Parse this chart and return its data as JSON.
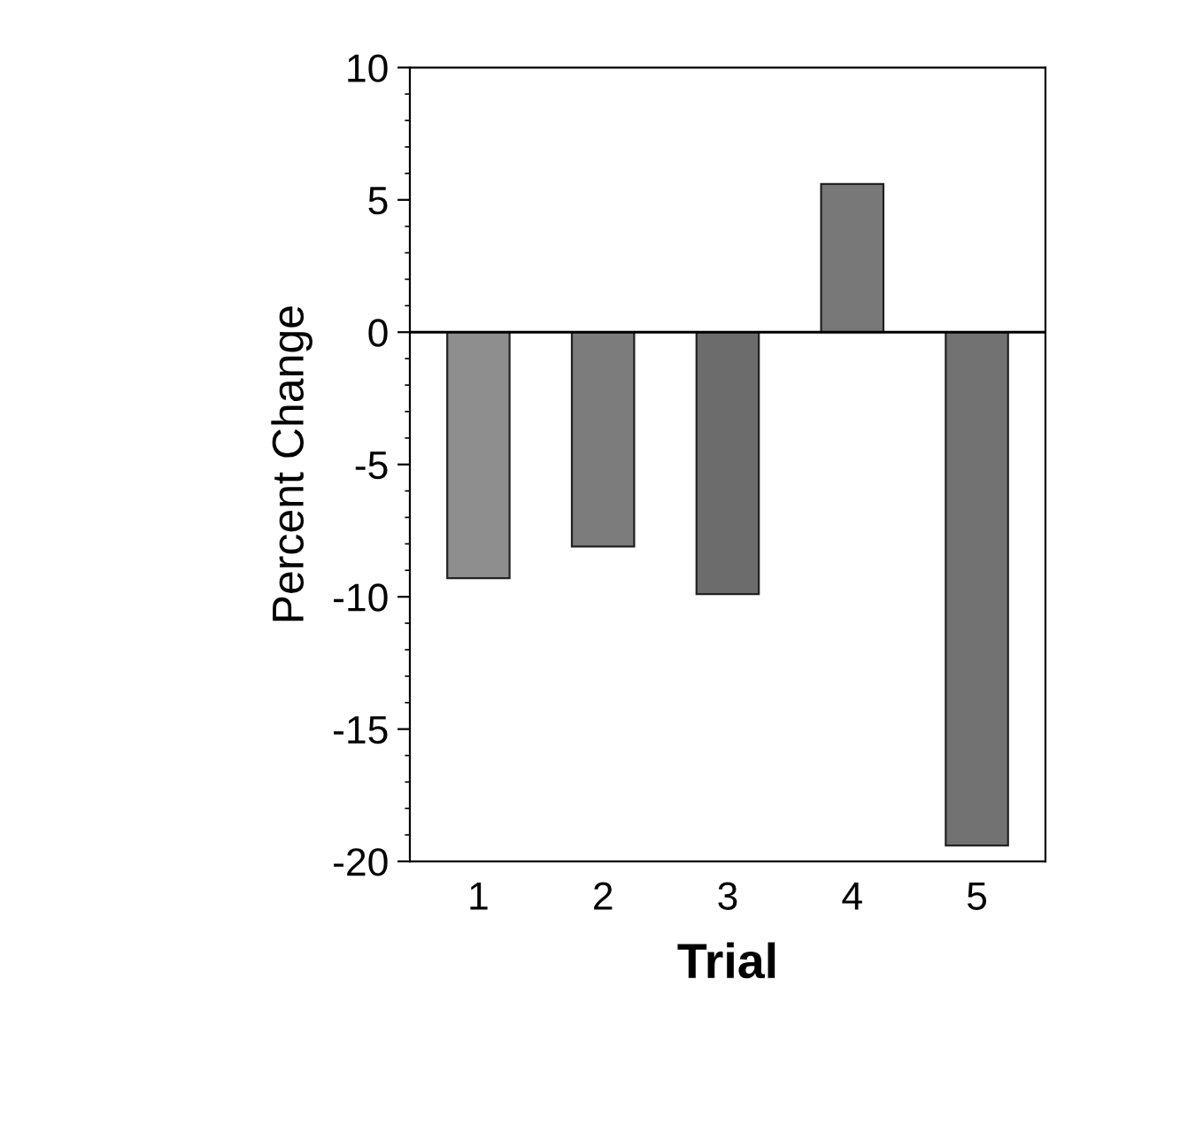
{
  "chart_data": {
    "type": "bar",
    "xlabel": "Trial",
    "ylabel": "Percent Change",
    "categories": [
      "1",
      "2",
      "3",
      "4",
      "5"
    ],
    "values": [
      -9.3,
      -8.1,
      -9.9,
      5.6,
      -19.4
    ],
    "colors": [
      "#8e8e8e",
      "#7c7c7c",
      "#6c6c6c",
      "#787878",
      "#727272"
    ],
    "ylim": [
      -20,
      10
    ],
    "yticks": [
      -20,
      -15,
      -10,
      -5,
      0,
      5,
      10
    ],
    "ref_lines": [
      {
        "axis": "y",
        "value": 0,
        "color": "#000000"
      }
    ],
    "grid": false,
    "legend": false
  }
}
